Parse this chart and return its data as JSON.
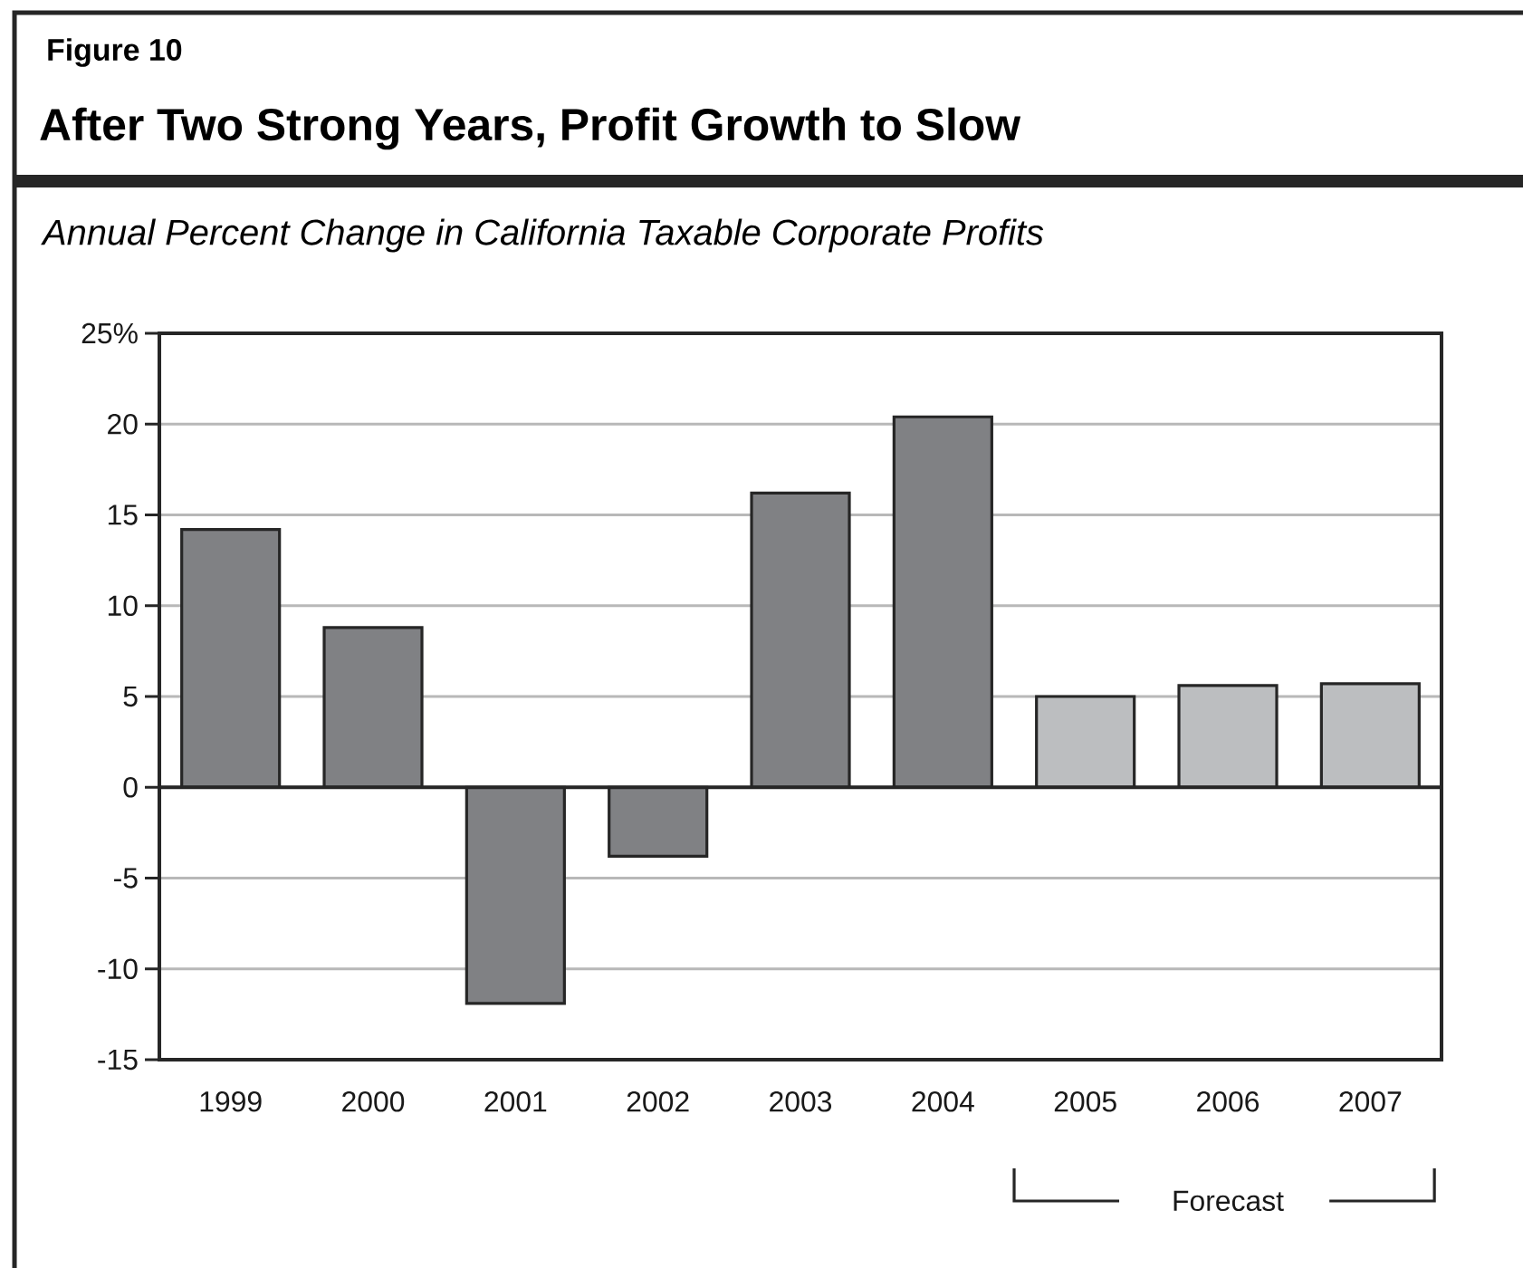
{
  "chart_data": {
    "type": "bar",
    "title": "After Two Strong Years, Profit Growth to Slow",
    "subtitle": "Annual Percent Change in California Taxable Corporate Profits",
    "annotations": [
      "Figure 10",
      "Forecast"
    ],
    "categories": [
      "1999",
      "2000",
      "2001",
      "2002",
      "2003",
      "2004",
      "2005",
      "2006",
      "2007"
    ],
    "values": [
      14.2,
      8.8,
      -11.9,
      -3.8,
      16.2,
      20.4,
      5.0,
      5.6,
      5.7
    ],
    "colors": [
      "#808184",
      "#808184",
      "#808184",
      "#808184",
      "#808184",
      "#808184",
      "#bcbec0",
      "#bcbec0",
      "#bcbec0"
    ],
    "ylim": [
      -15,
      25
    ],
    "yticks": [
      -15,
      -10,
      -5,
      0,
      5,
      10,
      15,
      20,
      {
        "value": 25,
        "label": "25%"
      }
    ],
    "grid": "y"
  }
}
